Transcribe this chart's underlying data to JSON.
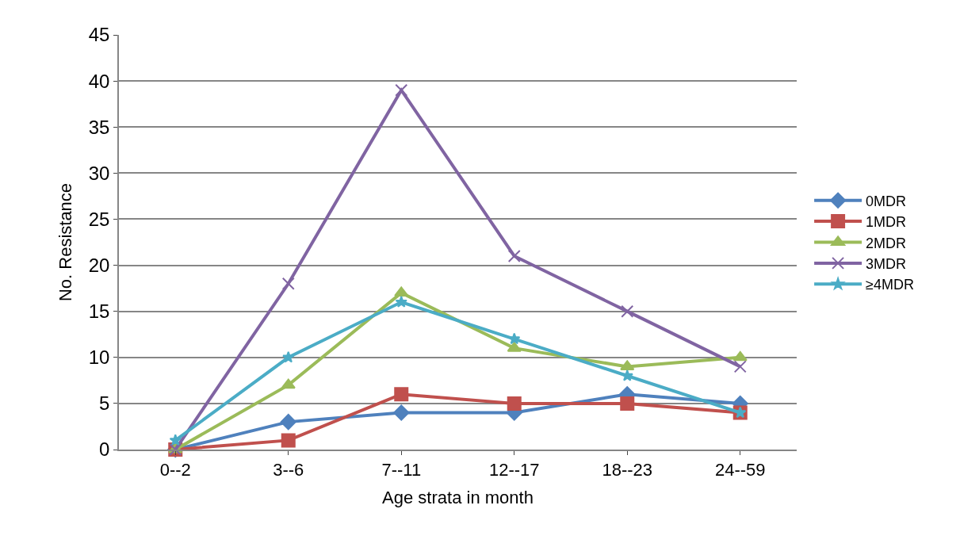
{
  "chart_data": {
    "type": "line",
    "xlabel": "Age strata in month",
    "ylabel": "No. Resistance",
    "categories": [
      "0--2",
      "3--6",
      "7--11",
      "12--17",
      "18--23",
      "24--59"
    ],
    "series": [
      {
        "name": "0MDR",
        "color": "#4f81bd",
        "marker": "diamond",
        "values": [
          0,
          3,
          4,
          4,
          6,
          5
        ]
      },
      {
        "name": "1MDR",
        "color": "#c0504d",
        "marker": "square",
        "values": [
          0,
          1,
          6,
          5,
          5,
          4
        ]
      },
      {
        "name": "2MDR",
        "color": "#9bbb59",
        "marker": "triangle",
        "values": [
          0,
          7,
          17,
          11,
          9,
          10
        ]
      },
      {
        "name": "3MDR",
        "color": "#8064a2",
        "marker": "cross",
        "values": [
          0,
          18,
          39,
          21,
          15,
          9
        ]
      },
      {
        "name": "≥4MDR",
        "color": "#4bacc6",
        "marker": "star",
        "values": [
          1,
          10,
          16,
          12,
          8,
          4
        ]
      }
    ],
    "ylim": [
      0,
      45
    ],
    "yticks": [
      0,
      5,
      10,
      15,
      20,
      25,
      30,
      35,
      40,
      45
    ],
    "grid": "y",
    "legend": "right"
  }
}
